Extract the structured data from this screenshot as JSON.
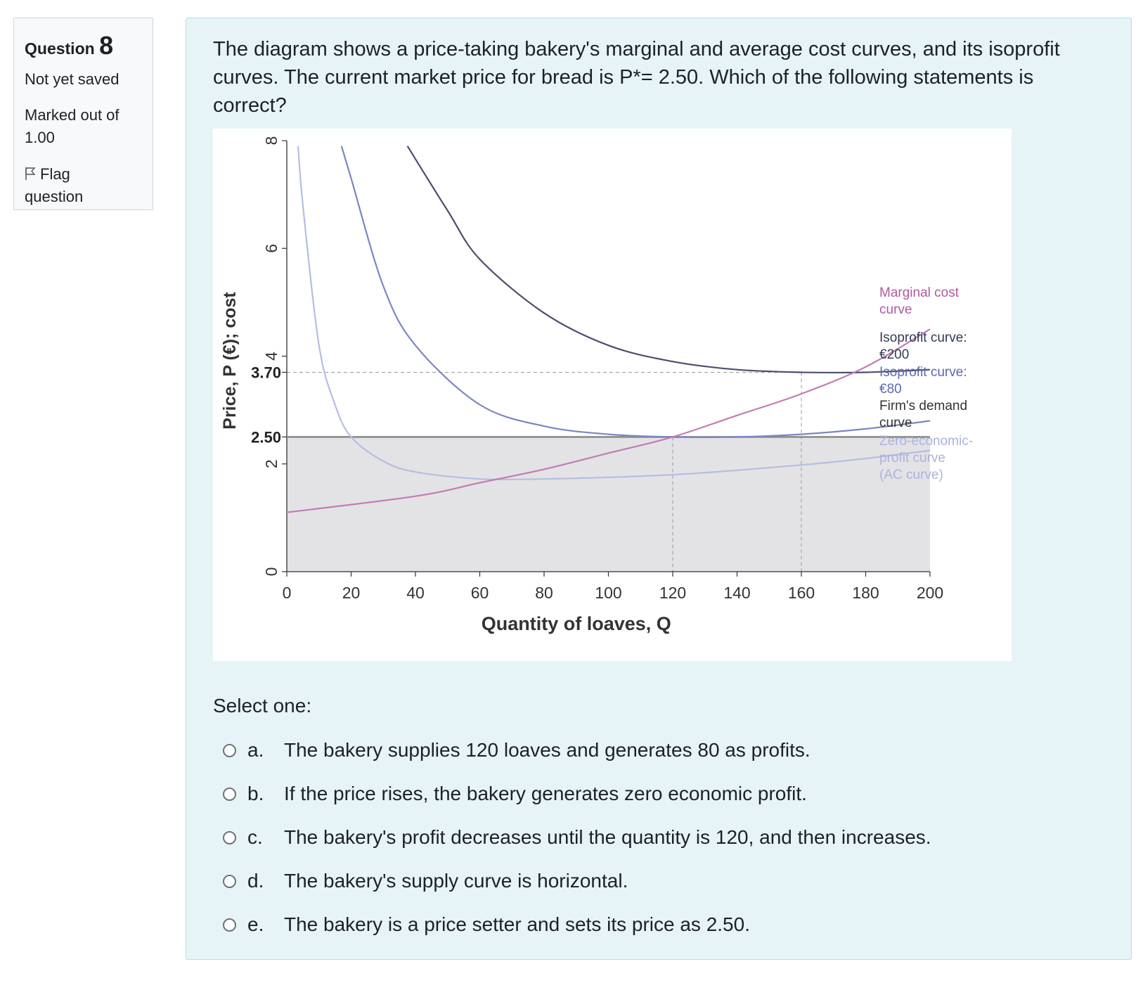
{
  "info": {
    "question_word": "Question",
    "question_number": "8",
    "state": "Not yet saved",
    "marked_line1": "Marked out of",
    "marked_line2": "1.00",
    "flag_line1": "Flag",
    "flag_line2": "question"
  },
  "question": {
    "text": "The diagram shows a price-taking bakery's marginal and average cost curves, and its isoprofit curves. The current market price for bread is P*= 2.50. Which of the following statements is correct?"
  },
  "chart_data": {
    "type": "line",
    "xlabel": "Quantity of loaves, Q",
    "ylabel": "Price, P (€); cost",
    "xlim": [
      0,
      200
    ],
    "ylim": [
      0,
      8
    ],
    "x_ticks": [
      "0",
      "20",
      "40",
      "60",
      "80",
      "100",
      "120",
      "140",
      "160",
      "180",
      "200"
    ],
    "y_ticks": [
      "0",
      "2",
      "2.50",
      "3.70",
      "4",
      "6",
      "8"
    ],
    "grid": false,
    "series": [
      {
        "name": "Marginal cost curve",
        "x": [
          0,
          40,
          60,
          80,
          100,
          120,
          140,
          160,
          180,
          200
        ],
        "y": [
          1.1,
          1.4,
          1.65,
          1.9,
          2.2,
          2.5,
          2.9,
          3.3,
          3.8,
          4.5
        ]
      },
      {
        "name": "Isoprofit curve: €200",
        "x": [
          37.5,
          50,
          60,
          80,
          100,
          120,
          140,
          160,
          180,
          200
        ],
        "y": [
          7.9,
          6.7,
          5.8,
          4.8,
          4.2,
          3.9,
          3.75,
          3.7,
          3.7,
          3.75
        ]
      },
      {
        "name": "Isoprofit curve: €80",
        "x": [
          17,
          20,
          30,
          40,
          60,
          80,
          100,
          120,
          140,
          160,
          180,
          200
        ],
        "y": [
          7.9,
          7.3,
          5.3,
          4.2,
          3.1,
          2.7,
          2.55,
          2.5,
          2.5,
          2.55,
          2.65,
          2.8
        ]
      },
      {
        "name": "Firm's demand curve",
        "x": [
          0,
          200
        ],
        "y": [
          2.5,
          2.5
        ]
      },
      {
        "name": "Zero-economic-profit curve (AC curve)",
        "x": [
          3.5,
          5,
          10,
          15,
          20,
          30,
          40,
          60,
          80,
          100,
          120,
          140,
          160,
          180,
          200
        ],
        "y": [
          7.9,
          6.8,
          4.2,
          3.1,
          2.5,
          2.05,
          1.85,
          1.72,
          1.72,
          1.75,
          1.8,
          1.88,
          1.98,
          2.1,
          2.25
        ]
      }
    ],
    "annotations": [
      "3.70",
      "2.50"
    ],
    "shaded_region": {
      "x": [
        0,
        200
      ],
      "y": [
        0,
        2.5
      ]
    },
    "dashed_lines": [
      {
        "x": 120,
        "y": 2.5
      },
      {
        "x": 160,
        "y": 3.7
      }
    ],
    "colors": {
      "mc": "#c27bb5",
      "iso200": "#4a4f6e",
      "iso80": "#7b86c4",
      "demand": "#8c8c8c",
      "ac": "#b6bde2",
      "shade": "#e3e3e6"
    },
    "legend": {
      "mc": [
        "Marginal cost",
        "curve"
      ],
      "iso200": [
        "Isoprofit curve:",
        "€200"
      ],
      "iso80": [
        "Isoprofit curve:",
        "€80"
      ],
      "demand": [
        "Firm's demand",
        "curve"
      ],
      "ac": [
        "Zero-economic-",
        "profit curve",
        "(AC curve)"
      ]
    }
  },
  "prompt": "Select one:",
  "answers": [
    {
      "letter": "a.",
      "text": "The bakery supplies 120 loaves and generates 80 as profits."
    },
    {
      "letter": "b.",
      "text": "If the price rises, the bakery generates zero economic profit."
    },
    {
      "letter": "c.",
      "text": "The bakery's profit decreases until the quantity is 120, and then increases."
    },
    {
      "letter": "d.",
      "text": "The bakery's supply curve is horizontal."
    },
    {
      "letter": "e.",
      "text": "The bakery is a price setter and sets its price as 2.50."
    }
  ]
}
